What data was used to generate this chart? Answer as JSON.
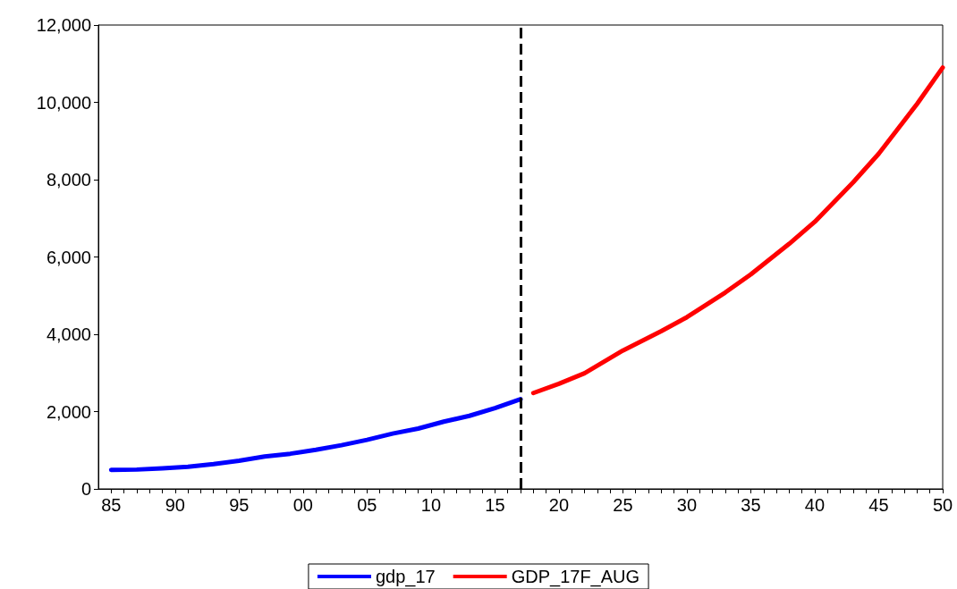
{
  "chart_data": {
    "type": "line",
    "legend": "bottom",
    "line_style": "solid",
    "marker": "none",
    "xlim": [
      1984,
      2050
    ],
    "xticks": [
      {
        "value": 1985,
        "label": "85"
      },
      {
        "value": 1986,
        "label": null
      },
      {
        "value": 1987,
        "label": null
      },
      {
        "value": 1988,
        "label": null
      },
      {
        "value": 1989,
        "label": null
      },
      {
        "value": 1990,
        "label": "90"
      },
      {
        "value": 1991,
        "label": null
      },
      {
        "value": 1992,
        "label": null
      },
      {
        "value": 1993,
        "label": null
      },
      {
        "value": 1994,
        "label": null
      },
      {
        "value": 1995,
        "label": "95"
      },
      {
        "value": 1996,
        "label": null
      },
      {
        "value": 1997,
        "label": null
      },
      {
        "value": 1998,
        "label": null
      },
      {
        "value": 1999,
        "label": null
      },
      {
        "value": 2000,
        "label": "00"
      },
      {
        "value": 2001,
        "label": null
      },
      {
        "value": 2002,
        "label": null
      },
      {
        "value": 2003,
        "label": null
      },
      {
        "value": 2004,
        "label": null
      },
      {
        "value": 2005,
        "label": "05"
      },
      {
        "value": 2006,
        "label": null
      },
      {
        "value": 2007,
        "label": null
      },
      {
        "value": 2008,
        "label": null
      },
      {
        "value": 2009,
        "label": null
      },
      {
        "value": 2010,
        "label": "10"
      },
      {
        "value": 2011,
        "label": null
      },
      {
        "value": 2012,
        "label": null
      },
      {
        "value": 2013,
        "label": null
      },
      {
        "value": 2014,
        "label": null
      },
      {
        "value": 2015,
        "label": "15"
      },
      {
        "value": 2016,
        "label": null
      },
      {
        "value": 2017,
        "label": null
      },
      {
        "value": 2018,
        "label": null
      },
      {
        "value": 2019,
        "label": null
      },
      {
        "value": 2020,
        "label": "20"
      },
      {
        "value": 2021,
        "label": null
      },
      {
        "value": 2022,
        "label": null
      },
      {
        "value": 2023,
        "label": null
      },
      {
        "value": 2024,
        "label": null
      },
      {
        "value": 2025,
        "label": "25"
      },
      {
        "value": 2026,
        "label": null
      },
      {
        "value": 2027,
        "label": null
      },
      {
        "value": 2028,
        "label": null
      },
      {
        "value": 2029,
        "label": null
      },
      {
        "value": 2030,
        "label": "30"
      },
      {
        "value": 2031,
        "label": null
      },
      {
        "value": 2032,
        "label": null
      },
      {
        "value": 2033,
        "label": null
      },
      {
        "value": 2034,
        "label": null
      },
      {
        "value": 2035,
        "label": "35"
      },
      {
        "value": 2036,
        "label": null
      },
      {
        "value": 2037,
        "label": null
      },
      {
        "value": 2038,
        "label": null
      },
      {
        "value": 2039,
        "label": null
      },
      {
        "value": 2040,
        "label": "40"
      },
      {
        "value": 2041,
        "label": null
      },
      {
        "value": 2042,
        "label": null
      },
      {
        "value": 2043,
        "label": null
      },
      {
        "value": 2044,
        "label": null
      },
      {
        "value": 2045,
        "label": "45"
      },
      {
        "value": 2046,
        "label": null
      },
      {
        "value": 2047,
        "label": null
      },
      {
        "value": 2048,
        "label": null
      },
      {
        "value": 2049,
        "label": null
      },
      {
        "value": 2050,
        "label": "50"
      }
    ],
    "ylim": [
      0,
      12000
    ],
    "yticks": [
      {
        "value": 0,
        "label": "0"
      },
      {
        "value": 2000,
        "label": "2,000"
      },
      {
        "value": 4000,
        "label": "4,000"
      },
      {
        "value": 6000,
        "label": "6,000"
      },
      {
        "value": 8000,
        "label": "8,000"
      },
      {
        "value": 10000,
        "label": "10,000"
      },
      {
        "value": 12000,
        "label": "12,000"
      }
    ],
    "ref_lines": [
      {
        "axis": "x",
        "value": 2017,
        "color": "#000000",
        "line_style": "dashed"
      }
    ],
    "series": [
      {
        "name": "gdp_17",
        "color": "#0000ff",
        "x": [
          1985,
          1987,
          1989,
          1991,
          1993,
          1995,
          1997,
          1999,
          2001,
          2003,
          2005,
          2007,
          2009,
          2011,
          2013,
          2015,
          2017
        ],
        "values": [
          490,
          500,
          530,
          570,
          640,
          730,
          840,
          910,
          1010,
          1130,
          1270,
          1430,
          1560,
          1740,
          1890,
          2090,
          2320
        ]
      },
      {
        "name": "GDP_17F_AUG",
        "color": "#ff0000",
        "x": [
          2018,
          2020,
          2022,
          2025,
          2028,
          2030,
          2033,
          2035,
          2038,
          2040,
          2043,
          2045,
          2048,
          2050
        ],
        "values": [
          2480,
          2720,
          2990,
          3580,
          4080,
          4440,
          5080,
          5550,
          6340,
          6910,
          7930,
          8670,
          9960,
          10900
        ]
      }
    ]
  }
}
